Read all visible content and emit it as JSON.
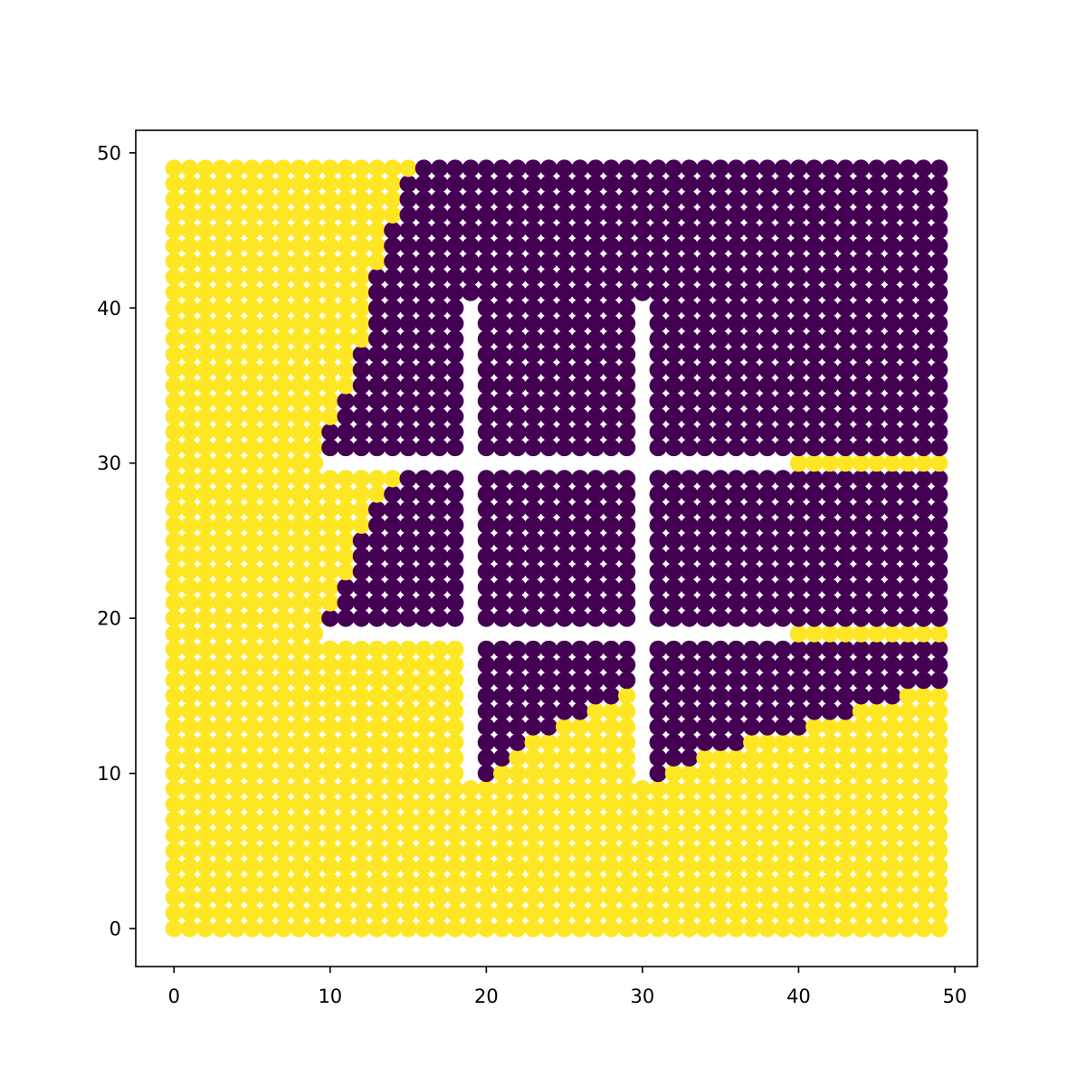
{
  "chart_data": {
    "type": "scatter",
    "title": "",
    "xlabel": "",
    "ylabel": "",
    "xlim": [
      -2.45,
      51.45
    ],
    "ylim": [
      -2.45,
      51.45
    ],
    "grid": false,
    "xticks": [
      "0",
      "10",
      "20",
      "30",
      "40",
      "50"
    ],
    "yticks": [
      "0",
      "10",
      "20",
      "30",
      "40",
      "50"
    ],
    "grid_points": {
      "x_range": [
        0,
        49
      ],
      "y_range": [
        0,
        49
      ],
      "step": 1,
      "excluded_walls": [
        {
          "axis": "x",
          "at": 19,
          "from_y": 10,
          "to_y": 40
        },
        {
          "axis": "x",
          "at": 30,
          "from_y": 10,
          "to_y": 40
        },
        {
          "axis": "y",
          "at": 19,
          "from_x": 10,
          "to_x": 39
        },
        {
          "axis": "y",
          "at": 30,
          "from_x": 10,
          "to_x": 39
        }
      ]
    },
    "classes": [
      {
        "value": 1,
        "color": "#fde725"
      },
      {
        "value": 0,
        "color": "#440154"
      }
    ],
    "class_0_region": [
      {
        "y": [
          49,
          49
        ],
        "x": [
          16,
          49
        ]
      },
      {
        "y": [
          46,
          48
        ],
        "x": [
          15,
          49
        ]
      },
      {
        "y": [
          43,
          45
        ],
        "x": [
          14,
          49
        ]
      },
      {
        "y": [
          41,
          42
        ],
        "x": [
          13,
          49
        ]
      },
      {
        "y": [
          38,
          40
        ],
        "x": [
          13,
          49
        ]
      },
      {
        "y": [
          35,
          37
        ],
        "x": [
          12,
          49
        ]
      },
      {
        "y": [
          33,
          34
        ],
        "x": [
          11,
          49
        ]
      },
      {
        "y": [
          31,
          32
        ],
        "x": [
          10,
          49
        ]
      },
      {
        "y": [
          29,
          29
        ],
        "x": [
          15,
          49
        ]
      },
      {
        "y": [
          28,
          28
        ],
        "x": [
          14,
          49
        ]
      },
      {
        "y": [
          26,
          27
        ],
        "x": [
          13,
          49
        ]
      },
      {
        "y": [
          23,
          25
        ],
        "x": [
          12,
          49
        ]
      },
      {
        "y": [
          21,
          22
        ],
        "x": [
          11,
          49
        ]
      },
      {
        "y": [
          20,
          20
        ],
        "x": [
          10,
          49
        ]
      },
      {
        "y": [
          16,
          18
        ],
        "x": [
          20,
          49
        ]
      },
      {
        "y": [
          15,
          15
        ],
        "x": [
          20,
          46
        ]
      },
      {
        "y": [
          14,
          14
        ],
        "x": [
          20,
          43
        ]
      },
      {
        "y": [
          13,
          13
        ],
        "x": [
          20,
          40
        ]
      },
      {
        "y": [
          12,
          12
        ],
        "x": [
          20,
          36
        ]
      },
      {
        "y": [
          11,
          11
        ],
        "x": [
          20,
          33
        ]
      },
      {
        "y": [
          10,
          10
        ],
        "x": [
          20,
          31
        ]
      }
    ],
    "class_0_carveouts": [
      {
        "y": [
          15,
          15
        ],
        "x": [
          29,
          29
        ]
      },
      {
        "y": [
          14,
          14
        ],
        "x": [
          27,
          29
        ]
      },
      {
        "y": [
          13,
          13
        ],
        "x": [
          25,
          29
        ]
      },
      {
        "y": [
          12,
          12
        ],
        "x": [
          23,
          29
        ]
      },
      {
        "y": [
          11,
          11
        ],
        "x": [
          22,
          29
        ]
      },
      {
        "y": [
          10,
          10
        ],
        "x": [
          21,
          29
        ]
      }
    ]
  }
}
